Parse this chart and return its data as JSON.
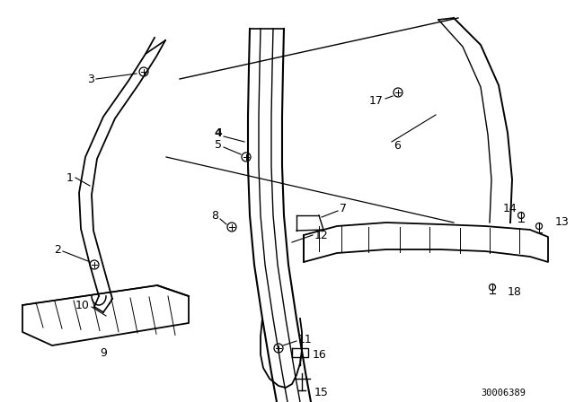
{
  "background_color": "#ffffff",
  "line_color": "#000000",
  "diagram_id": "30006389",
  "label_fontsize": 9,
  "small_fontsize": 7.5
}
